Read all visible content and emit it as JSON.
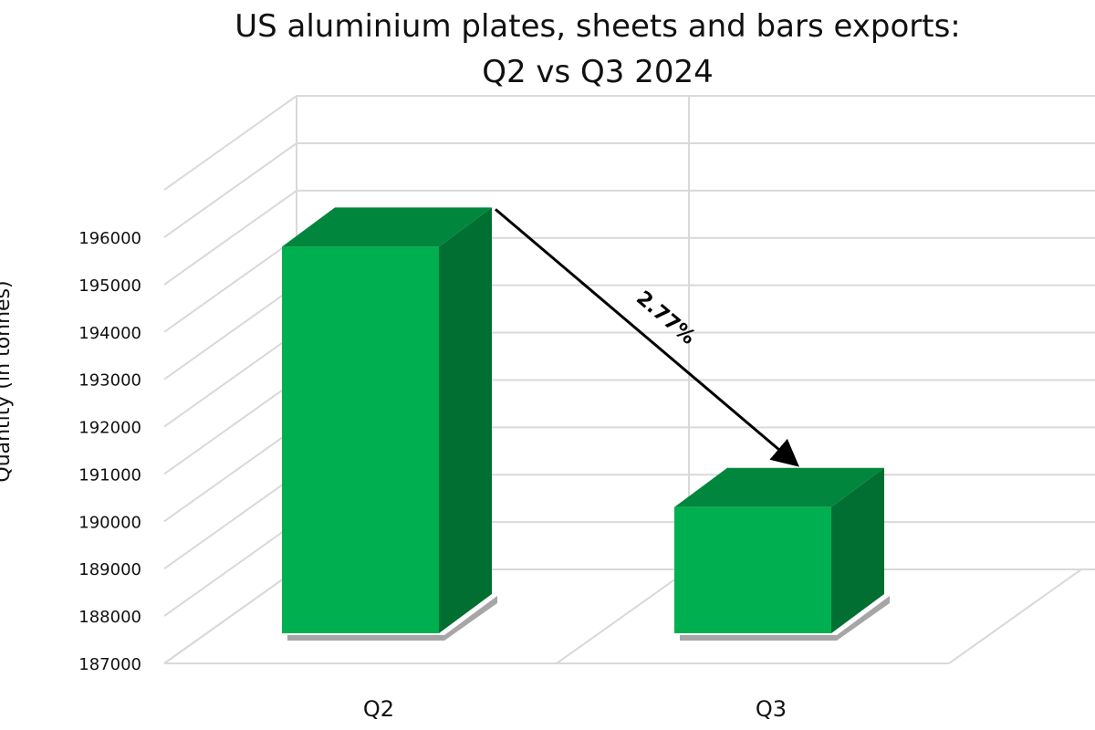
{
  "chart_data": {
    "type": "bar",
    "style": "3d-column",
    "title": [
      "US aluminium plates, sheets and bars exports:",
      "Q2 vs Q3 2024"
    ],
    "xlabel": "",
    "ylabel": "Quantity (in tonnes)",
    "categories": [
      "Q2",
      "Q3"
    ],
    "values": [
      195800,
      190300
    ],
    "ylim": [
      187000,
      196000
    ],
    "ytick_step": 1000,
    "yticks": [
      "187000",
      "188000",
      "189000",
      "190000",
      "191000",
      "192000",
      "193000",
      "194000",
      "195000",
      "196000"
    ],
    "grid": true,
    "legend": "none",
    "annotation": {
      "text": "2.77%",
      "from": "Q2",
      "to": "Q3"
    },
    "colors": {
      "bar_front": "#00B050",
      "bar_top": "#00873D",
      "bar_side": "#006F31",
      "grid": "#D9D9D9",
      "text": "#111111"
    }
  }
}
